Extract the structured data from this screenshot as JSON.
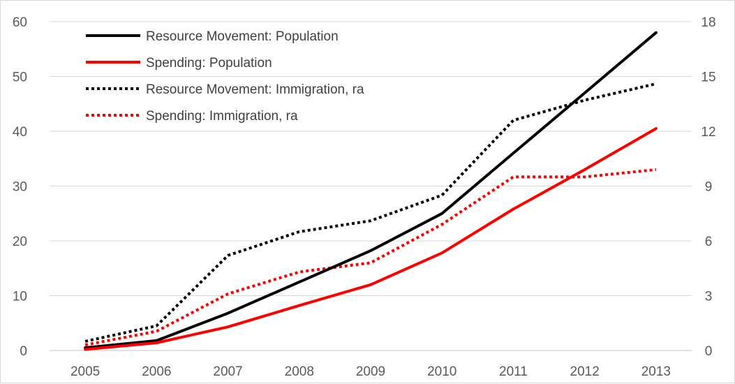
{
  "chart_data": {
    "type": "line",
    "title": "",
    "xlabel": "",
    "ylabel": "",
    "y2label": "",
    "categories": [
      "2005",
      "2006",
      "2007",
      "2008",
      "2009",
      "2010",
      "2011",
      "2012",
      "2013"
    ],
    "ylim": [
      0,
      60
    ],
    "y2lim": [
      0,
      18
    ],
    "yticks": [
      0,
      10,
      20,
      30,
      40,
      50,
      60
    ],
    "y2ticks": [
      0,
      3,
      6,
      9,
      12,
      15,
      18
    ],
    "grid": true,
    "legend_position": "top-left",
    "series": [
      {
        "name": "Resource Movement: Population",
        "axis": "left",
        "style": "solid",
        "color": "#000000",
        "values": [
          0.5,
          1.8,
          6.8,
          12.5,
          18.2,
          25.0,
          36.0,
          47.0,
          58.0
        ]
      },
      {
        "name": "Spending: Population",
        "axis": "left",
        "style": "solid",
        "color": "#ff0000",
        "values": [
          0.2,
          1.4,
          4.3,
          8.2,
          12.0,
          17.8,
          25.8,
          33.0,
          40.5
        ]
      },
      {
        "name": "Resource Movement: Immigration, ra",
        "axis": "right",
        "style": "dotted",
        "color": "#000000",
        "values": [
          0.5,
          1.35,
          5.2,
          6.5,
          7.1,
          8.5,
          12.6,
          13.7,
          14.6
        ]
      },
      {
        "name": "Spending: Immigration, ra",
        "axis": "right",
        "style": "dotted",
        "color": "#ff0000",
        "values": [
          0.3,
          1.05,
          3.1,
          4.3,
          4.8,
          6.9,
          9.5,
          9.5,
          9.9
        ]
      }
    ]
  }
}
